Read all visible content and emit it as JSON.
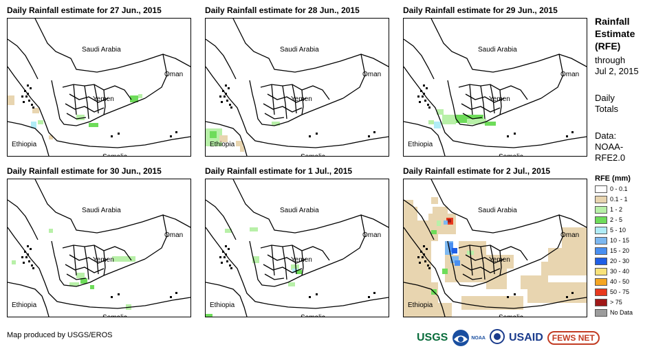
{
  "panels": [
    {
      "title": "Daily Rainfall estimate for 27 Jun., 2015",
      "date": "27 Jun., 2015"
    },
    {
      "title": "Daily Rainfall estimate for 28 Jun., 2015",
      "date": "28 Jun., 2015"
    },
    {
      "title": "Daily Rainfall estimate for 29 Jun., 2015",
      "date": "29 Jun., 2015"
    },
    {
      "title": "Daily Rainfall estimate for 30 Jun., 2015",
      "date": "30 Jun., 2015"
    },
    {
      "title": "Daily Rainfall estimate for 1 Jul., 2015",
      "date": "1 Jul., 2015"
    },
    {
      "title": "Daily Rainfall estimate for 2 Jul., 2015",
      "date": "2 Jul., 2015"
    }
  ],
  "countries": {
    "saudi": "Saudi Arabia",
    "oman": "Oman",
    "yemen": "Yemen",
    "ethiopia": "Ethiopia",
    "somalia": "Somalia"
  },
  "legend": {
    "title_lines": [
      "Rainfall",
      "Estimate",
      "(RFE)"
    ],
    "through_lines": [
      "through",
      "Jul 2, 2015"
    ],
    "daily_lines": [
      "Daily",
      "Totals"
    ],
    "data_lines": [
      "Data:",
      "NOAA-",
      "RFE2.0"
    ],
    "units": "RFE (mm)",
    "classes": [
      {
        "label": "0 - 0.1",
        "color": "#ffffff"
      },
      {
        "label": "0.1 - 1",
        "color": "#e8d5b0"
      },
      {
        "label": "1 - 2",
        "color": "#b8f0a8"
      },
      {
        "label": "2 - 5",
        "color": "#6edc5a"
      },
      {
        "label": "5 - 10",
        "color": "#b0ecf6"
      },
      {
        "label": "10 - 15",
        "color": "#7db8f0"
      },
      {
        "label": "15 - 20",
        "color": "#4a8ff0"
      },
      {
        "label": "20 - 30",
        "color": "#1f5fe6"
      },
      {
        "label": "30 - 40",
        "color": "#f8e27a"
      },
      {
        "label": "40 - 50",
        "color": "#f5a623"
      },
      {
        "label": "50 - 75",
        "color": "#e8391e"
      },
      {
        "label": "> 75",
        "color": "#a01818"
      },
      {
        "label": "No Data",
        "color": "#9c9c9c"
      }
    ]
  },
  "footer": {
    "credit": "Map produced by USGS/EROS",
    "logos": [
      "USGS",
      "NOAA",
      "USAID",
      "FEWS NET"
    ]
  }
}
